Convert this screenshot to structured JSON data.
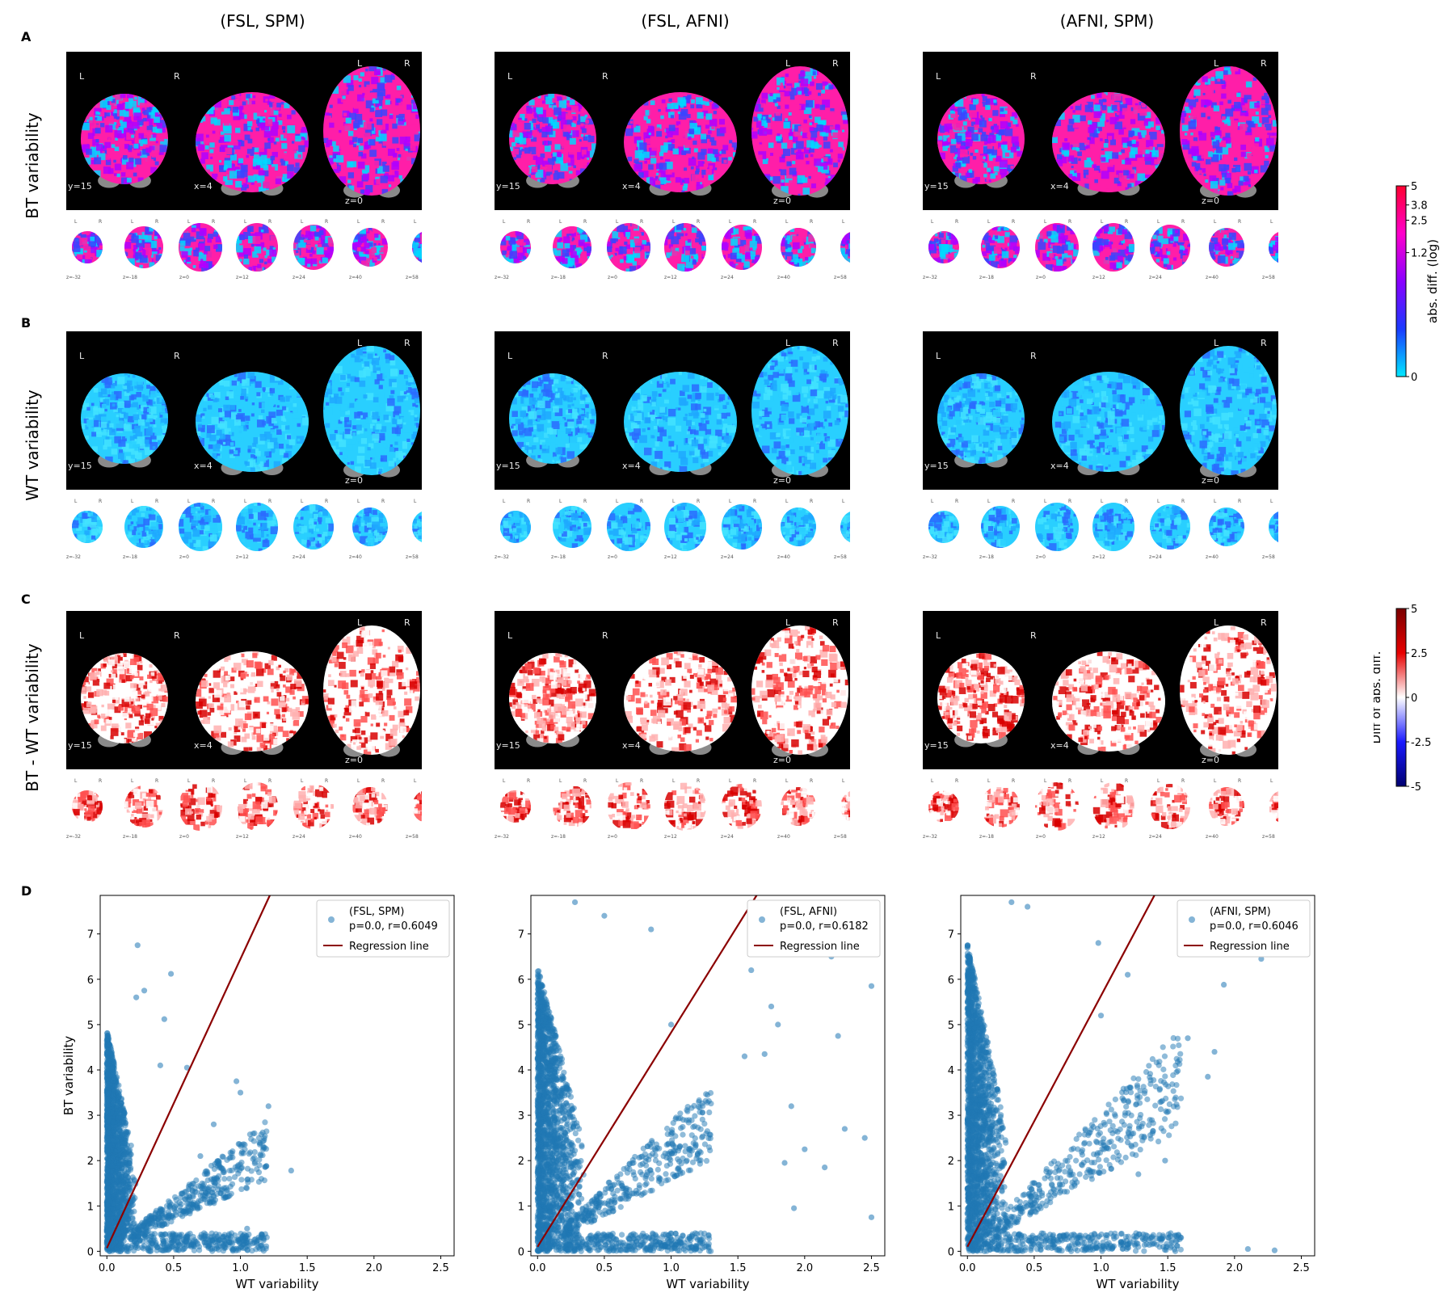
{
  "columns": [
    "(FSL, SPM)",
    "(FSL, AFNI)",
    "(AFNI, SPM)"
  ],
  "panels": {
    "a": {
      "letter": "A",
      "row_label": "BT variability",
      "scheme": "bt"
    },
    "b": {
      "letter": "B",
      "row_label": "WT variability",
      "scheme": "wt"
    },
    "c": {
      "letter": "C",
      "row_label": "BT - WT variability",
      "scheme": "diff"
    },
    "d": {
      "letter": "D"
    }
  },
  "slice_labels": {
    "left": "L",
    "right": "R",
    "coronal": "y=15",
    "sagittal": "x=4",
    "axial": "z=0",
    "strip": [
      "z=-32",
      "z=-18",
      "z=0",
      "z=12",
      "z=24",
      "z=40",
      "z=58"
    ]
  },
  "colorbars": [
    {
      "label": "abs. diff. (log)",
      "ticks": [
        "5",
        "3.8",
        "2.5",
        "1.2",
        "0"
      ],
      "colors": [
        "#ff0030",
        "#ff00cc",
        "#8a00ff",
        "#1a3aff",
        "#00e8ff"
      ]
    },
    {
      "label": "Diff of abs. diff.",
      "ticks": [
        "5",
        "2.5",
        "0",
        "-2.5",
        "-5"
      ],
      "colors": [
        "#7a0000",
        "#e80000",
        "#ffffff",
        "#1a1aff",
        "#000070"
      ]
    }
  ],
  "colors": {
    "scatter": "#1f77b4",
    "regression": "#8b0000"
  },
  "chart_data": [
    {
      "type": "scatter",
      "title": "",
      "xlabel": "WT variability",
      "ylabel": "BT variability",
      "xlim": [
        -0.05,
        2.6
      ],
      "ylim": [
        -0.1,
        7.85
      ],
      "xticks": [
        "0.0",
        "0.5",
        "1.0",
        "1.5",
        "2.0",
        "2.5"
      ],
      "yticks": [
        "0",
        "1",
        "2",
        "3",
        "4",
        "5",
        "6",
        "7"
      ],
      "legend_position": "top-right",
      "series": [
        {
          "name": "(FSL, SPM)",
          "stats": "p=0.0, r=0.6049",
          "kind": "points",
          "points": [
            [
              0.23,
              6.75
            ],
            [
              0.48,
              6.12
            ],
            [
              0.28,
              5.75
            ],
            [
              0.22,
              5.6
            ],
            [
              0.43,
              5.12
            ],
            [
              0.6,
              4.05
            ],
            [
              0.97,
              3.75
            ],
            [
              1.0,
              3.5
            ],
            [
              1.21,
              3.2
            ],
            [
              1.38,
              1.78
            ],
            [
              0.8,
              2.8
            ],
            [
              0.7,
              2.1
            ],
            [
              0.9,
              1.2
            ],
            [
              1.05,
              0.5
            ],
            [
              0.55,
              0.9
            ],
            [
              0.4,
              4.1
            ]
          ]
        },
        {
          "name": "Regression line",
          "kind": "line",
          "from": [
            0.0,
            0.07
          ],
          "to": [
            1.22,
            7.85
          ]
        }
      ]
    },
    {
      "type": "scatter",
      "title": "",
      "xlabel": "WT variability",
      "ylabel": "",
      "xlim": [
        -0.05,
        2.6
      ],
      "ylim": [
        -0.1,
        7.85
      ],
      "xticks": [
        "0.0",
        "0.5",
        "1.0",
        "1.5",
        "2.0",
        "2.5"
      ],
      "yticks": [
        "0",
        "1",
        "2",
        "3",
        "4",
        "5",
        "6",
        "7"
      ],
      "legend_position": "top-right",
      "series": [
        {
          "name": "(FSL, AFNI)",
          "stats": "p=0.0, r=0.6182",
          "kind": "points",
          "points": [
            [
              0.28,
              7.7
            ],
            [
              0.5,
              7.4
            ],
            [
              0.85,
              7.1
            ],
            [
              1.6,
              6.2
            ],
            [
              1.75,
              5.4
            ],
            [
              2.5,
              5.85
            ],
            [
              2.2,
              6.5
            ],
            [
              1.8,
              5.0
            ],
            [
              1.7,
              4.35
            ],
            [
              2.25,
              4.75
            ],
            [
              1.9,
              3.2
            ],
            [
              2.0,
              2.25
            ],
            [
              2.3,
              2.7
            ],
            [
              2.45,
              2.5
            ],
            [
              1.85,
              1.95
            ],
            [
              2.15,
              1.85
            ],
            [
              1.92,
              0.95
            ],
            [
              2.5,
              0.75
            ],
            [
              1.55,
              4.3
            ],
            [
              1.0,
              5.0
            ]
          ]
        },
        {
          "name": "Regression line",
          "kind": "line",
          "from": [
            0.0,
            0.1
          ],
          "to": [
            1.64,
            7.85
          ]
        }
      ]
    },
    {
      "type": "scatter",
      "title": "",
      "xlabel": "WT variability",
      "ylabel": "",
      "xlim": [
        -0.05,
        2.6
      ],
      "ylim": [
        -0.1,
        7.85
      ],
      "xticks": [
        "0.0",
        "0.5",
        "1.0",
        "1.5",
        "2.0",
        "2.5"
      ],
      "yticks": [
        "0",
        "1",
        "2",
        "3",
        "4",
        "5",
        "6",
        "7"
      ],
      "legend_position": "top-right",
      "series": [
        {
          "name": "(AFNI, SPM)",
          "stats": "p=0.0, r=0.6046",
          "kind": "points",
          "points": [
            [
              0.33,
              7.7
            ],
            [
              0.45,
              7.6
            ],
            [
              0.98,
              6.8
            ],
            [
              1.2,
              6.1
            ],
            [
              2.2,
              6.45
            ],
            [
              1.92,
              5.88
            ],
            [
              1.85,
              4.4
            ],
            [
              1.65,
              4.7
            ],
            [
              1.8,
              3.85
            ],
            [
              1.48,
              2.0
            ],
            [
              1.2,
              2.4
            ],
            [
              1.28,
              1.7
            ],
            [
              2.3,
              0.02
            ],
            [
              2.1,
              0.05
            ],
            [
              1.6,
              0.3
            ],
            [
              1.0,
              5.2
            ]
          ]
        },
        {
          "name": "Regression line",
          "kind": "line",
          "from": [
            0.0,
            0.1
          ],
          "to": [
            1.4,
            7.85
          ]
        }
      ]
    }
  ]
}
